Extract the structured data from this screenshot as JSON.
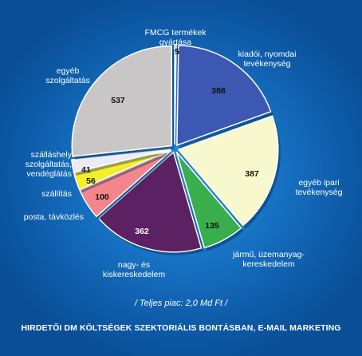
{
  "chart_data": {
    "type": "pie",
    "title": "HIRDETŐI DM KÖLTSÉGEK SZEKTORIÁLIS BONTÁSBAN, E-MAIL MARKETING",
    "note": "/ Teljes piac: 2,0 Md Ft /",
    "slices": [
      {
        "label": "FMCG termékek gyártása",
        "value": 5,
        "color": "#d42a2a"
      },
      {
        "label": "kiadói, nyomdai tevékenység",
        "value": 388,
        "color": "#3c58b2"
      },
      {
        "label": "egyéb ipari tevékenység",
        "value": 387,
        "color": "#f8f8cf"
      },
      {
        "label": "jármű, üzemanyag-kereskedelem",
        "value": 135,
        "color": "#3aad4c"
      },
      {
        "label": "nagy- és kiskereskedelem",
        "value": 362,
        "color": "#5c2163"
      },
      {
        "label": "posta, távközlés",
        "value": 100,
        "color": "#f2868c"
      },
      {
        "label": "szállítás",
        "value": 56,
        "color": "#f4ee2c"
      },
      {
        "label": "szálláshely szolgáltatás, vendéglátás",
        "value": 41,
        "color": "#ebebf6"
      },
      {
        "label": "egyéb szolgáltatás",
        "value": 537,
        "color": "#c8c6c6"
      }
    ]
  },
  "labels": {
    "fmcg": [
      "FMCG termékek",
      "gyártása"
    ],
    "kiadoi": [
      "kiadói, nyomdai",
      "tevékenység"
    ],
    "egyeb_ipari": [
      "egyéb ipari",
      "tevékenység"
    ],
    "jarmu": [
      "jármű, üzemanyag-",
      "kereskedelem"
    ],
    "nagy": [
      "nagy- és",
      "kiskereskedelem"
    ],
    "posta": [
      "posta, távközlés"
    ],
    "szallitas": [
      "szállítás"
    ],
    "szallashely": [
      "szálláshely",
      "szolgáltatás,",
      "vendéglátás"
    ],
    "egyeb_szolg": [
      "egyéb",
      "szolgáltatás"
    ]
  }
}
